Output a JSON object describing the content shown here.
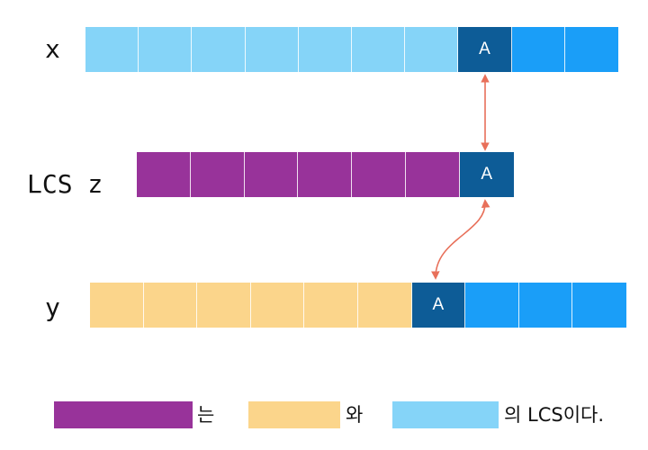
{
  "colors": {
    "x_light": "#85D4F8",
    "x_dark": "#0D5C97",
    "x_mid": "#1A9EF8",
    "z_purple": "#98339A",
    "y_yellow": "#FBD58B",
    "arrow": "#E8705A"
  },
  "rows": {
    "x": {
      "label": "x",
      "cells": [
        {
          "text": "",
          "color": "#85D4F8"
        },
        {
          "text": "",
          "color": "#85D4F8"
        },
        {
          "text": "",
          "color": "#85D4F8"
        },
        {
          "text": "",
          "color": "#85D4F8"
        },
        {
          "text": "",
          "color": "#85D4F8"
        },
        {
          "text": "",
          "color": "#85D4F8"
        },
        {
          "text": "",
          "color": "#85D4F8"
        },
        {
          "text": "A",
          "color": "#0D5C97"
        },
        {
          "text": "",
          "color": "#1A9EF8"
        },
        {
          "text": "",
          "color": "#1A9EF8"
        }
      ]
    },
    "z": {
      "label": "LCS z",
      "cells": [
        {
          "text": "",
          "color": "#98339A"
        },
        {
          "text": "",
          "color": "#98339A"
        },
        {
          "text": "",
          "color": "#98339A"
        },
        {
          "text": "",
          "color": "#98339A"
        },
        {
          "text": "",
          "color": "#98339A"
        },
        {
          "text": "",
          "color": "#98339A"
        },
        {
          "text": "A",
          "color": "#0D5C97"
        }
      ]
    },
    "y": {
      "label": "y",
      "cells": [
        {
          "text": "",
          "color": "#FBD58B"
        },
        {
          "text": "",
          "color": "#FBD58B"
        },
        {
          "text": "",
          "color": "#FBD58B"
        },
        {
          "text": "",
          "color": "#FBD58B"
        },
        {
          "text": "",
          "color": "#FBD58B"
        },
        {
          "text": "",
          "color": "#FBD58B"
        },
        {
          "text": "A",
          "color": "#0D5C97"
        },
        {
          "text": "",
          "color": "#1A9EF8"
        },
        {
          "text": "",
          "color": "#1A9EF8"
        },
        {
          "text": "",
          "color": "#1A9EF8"
        }
      ]
    }
  },
  "legend": {
    "text1": "는",
    "text2": "와",
    "text3": "의 LCS이다."
  }
}
